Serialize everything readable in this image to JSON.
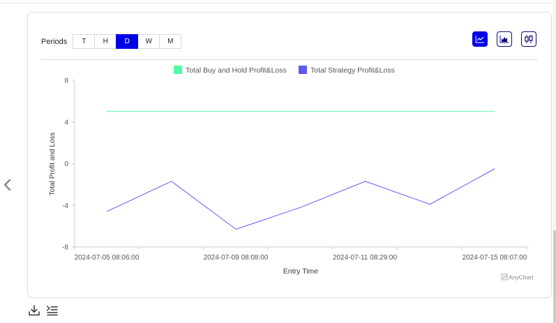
{
  "periods": {
    "label": "Periods",
    "options": [
      "T",
      "H",
      "D",
      "W",
      "M"
    ],
    "active": "D"
  },
  "chart_type_buttons": [
    {
      "icon": "line-chart-icon",
      "active": true
    },
    {
      "icon": "area-chart-icon",
      "active": false
    },
    {
      "icon": "candlestick-chart-icon",
      "active": false
    }
  ],
  "chart_data": {
    "type": "line",
    "x": [
      "2024-07-05 08:06:00",
      "2024-07-07",
      "2024-07-09 08:08:00",
      "2024-07-10",
      "2024-07-11 08:29:00",
      "2024-07-13",
      "2024-07-15 08:07:00"
    ],
    "x_tick_labels": [
      "2024-07-05 08:06:00",
      "2024-07-09 08:08:00",
      "2024-07-11 08:29:00",
      "2024-07-15 08:07:00"
    ],
    "series": [
      {
        "name": "Total Buy and Hold Profit&Loss",
        "color": "#4dffa6",
        "values": [
          5,
          5,
          5,
          5,
          5,
          5,
          5
        ]
      },
      {
        "name": "Total Strategy Profit&Loss",
        "color": "#5b5bf0",
        "values": [
          -4.6,
          -1.7,
          -6.3,
          -4.2,
          -1.7,
          -3.9,
          -0.5
        ]
      }
    ],
    "xlabel": "Entry Time",
    "ylabel": "Total Profit and Loss",
    "ylim": [
      -8,
      8
    ],
    "yticks": [
      8,
      4,
      0,
      -4,
      -8
    ],
    "legend_position": "top",
    "grid": false,
    "credit": "AnyChart"
  },
  "colors": {
    "accent": "#0000e6",
    "axis": "#cccccc"
  }
}
